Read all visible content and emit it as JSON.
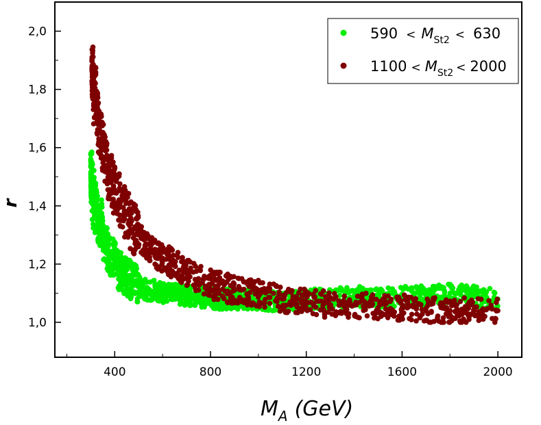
{
  "chart_data": {
    "type": "scatter",
    "title": "",
    "xlabel": "(GeV)",
    "xlabel_symbol": "M",
    "xlabel_subscript": "A",
    "ylabel": "r",
    "xlim": [
      150,
      2100
    ],
    "ylim": [
      0.88,
      2.1
    ],
    "x_ticks": [
      400,
      800,
      1200,
      1600,
      2000
    ],
    "x_tick_labels": [
      "400",
      "800",
      "1200",
      "1600",
      "2000"
    ],
    "y_ticks": [
      1.0,
      1.2,
      1.4,
      1.6,
      1.8,
      2.0
    ],
    "y_tick_labels": [
      "1,0",
      "1,2",
      "1,4",
      "1,6",
      "1,8",
      "2,0"
    ],
    "grid": false,
    "legend_position": "top-right",
    "series": [
      {
        "name": "590 < M_St2 < 630",
        "legend": {
          "left": "590",
          "lt1": "<",
          "sym": "M",
          "sub": "St2",
          "lt2": "<",
          "right": "630"
        },
        "color": "#00ee00",
        "x_range": [
          300,
          2000
        ],
        "trend": "r ≈ 1.09 + 25·(M_A/300 − 1)… decreasing from 1.58 at 300 GeV to ~1.08 at 2000 GeV",
        "points": [
          [
            300,
            1.58
          ],
          [
            300,
            1.56
          ],
          [
            302,
            1.45
          ],
          [
            304,
            1.53
          ],
          [
            306,
            1.41
          ],
          [
            308,
            1.5
          ],
          [
            310,
            1.38
          ],
          [
            312,
            1.47
          ],
          [
            315,
            1.44
          ],
          [
            318,
            1.36
          ],
          [
            320,
            1.42
          ],
          [
            325,
            1.39
          ],
          [
            330,
            1.35
          ],
          [
            335,
            1.33
          ],
          [
            340,
            1.31
          ],
          [
            345,
            1.37
          ],
          [
            350,
            1.29
          ],
          [
            360,
            1.27
          ],
          [
            370,
            1.25
          ],
          [
            380,
            1.23
          ],
          [
            390,
            1.22
          ],
          [
            400,
            1.21
          ],
          [
            410,
            1.19
          ],
          [
            420,
            1.18
          ],
          [
            430,
            1.17
          ],
          [
            440,
            1.16
          ],
          [
            450,
            1.15
          ],
          [
            470,
            1.14
          ],
          [
            490,
            1.13
          ],
          [
            510,
            1.12
          ],
          [
            540,
            1.11
          ],
          [
            570,
            1.11
          ],
          [
            600,
            1.1
          ],
          [
            650,
            1.1
          ],
          [
            700,
            1.09
          ],
          [
            750,
            1.09
          ],
          [
            800,
            1.08
          ],
          [
            900,
            1.08
          ],
          [
            1000,
            1.08
          ],
          [
            1100,
            1.07
          ],
          [
            1200,
            1.08
          ],
          [
            1300,
            1.08
          ],
          [
            1400,
            1.09
          ],
          [
            1500,
            1.08
          ],
          [
            1600,
            1.09
          ],
          [
            1700,
            1.09
          ],
          [
            1800,
            1.1
          ],
          [
            1900,
            1.09
          ],
          [
            2000,
            1.08
          ]
        ]
      },
      {
        "name": "1100 < M_St2 < 2000",
        "legend": {
          "left": "1100",
          "lt1": "<",
          "sym": "M",
          "sub": "St2",
          "lt2": "<",
          "right": "2000"
        },
        "color": "#7f0000",
        "x_range": [
          305,
          2000
        ],
        "trend": "decreasing from 1.87 at ~305 GeV to ~1.04 at 2000 GeV",
        "points": [
          [
            305,
            1.87
          ],
          [
            308,
            1.86
          ],
          [
            310,
            1.85
          ],
          [
            312,
            1.75
          ],
          [
            318,
            1.82
          ],
          [
            325,
            1.74
          ],
          [
            330,
            1.68
          ],
          [
            340,
            1.65
          ],
          [
            350,
            1.6
          ],
          [
            360,
            1.56
          ],
          [
            370,
            1.52
          ],
          [
            380,
            1.5
          ],
          [
            400,
            1.45
          ],
          [
            420,
            1.42
          ],
          [
            440,
            1.38
          ],
          [
            460,
            1.35
          ],
          [
            480,
            1.32
          ],
          [
            500,
            1.3
          ],
          [
            530,
            1.27
          ],
          [
            560,
            1.24
          ],
          [
            600,
            1.22
          ],
          [
            650,
            1.2
          ],
          [
            700,
            1.17
          ],
          [
            750,
            1.15
          ],
          [
            800,
            1.13
          ],
          [
            900,
            1.11
          ],
          [
            1000,
            1.1
          ],
          [
            1100,
            1.08
          ],
          [
            1200,
            1.07
          ],
          [
            1300,
            1.06
          ],
          [
            1400,
            1.06
          ],
          [
            1500,
            1.05
          ],
          [
            1600,
            1.05
          ],
          [
            1700,
            1.04
          ],
          [
            1800,
            1.04
          ],
          [
            1900,
            1.04
          ],
          [
            2000,
            1.04
          ]
        ]
      }
    ]
  }
}
